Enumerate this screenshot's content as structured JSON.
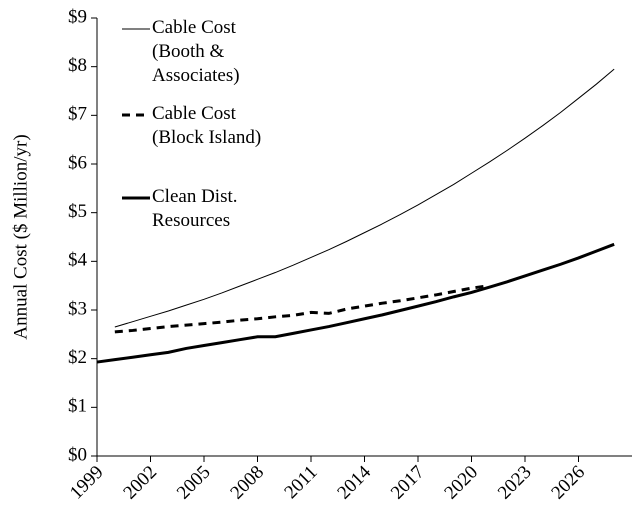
{
  "chart_data": {
    "type": "line",
    "ylabel": "Annual Cost ($ Million/yr)",
    "xlim": [
      1999,
      2029
    ],
    "xticks": [
      1999,
      2002,
      2005,
      2008,
      2011,
      2014,
      2017,
      2020,
      2023,
      2026
    ],
    "ylim": [
      0,
      9
    ],
    "yticks": [
      {
        "value": 0,
        "label": "$0"
      },
      {
        "value": 1,
        "label": "$1"
      },
      {
        "value": 2,
        "label": "$2"
      },
      {
        "value": 3,
        "label": "$3"
      },
      {
        "value": 4,
        "label": "$4"
      },
      {
        "value": 5,
        "label": "$5"
      },
      {
        "value": 6,
        "label": "$6"
      },
      {
        "value": 7,
        "label": "$7"
      },
      {
        "value": 8,
        "label": "$8"
      },
      {
        "value": 9,
        "label": "$9"
      }
    ],
    "series": [
      {
        "name": "Cable Cost\n(Booth &\nAssociates)",
        "color": "#000000",
        "style": "thin",
        "x": [
          2000,
          2001,
          2002,
          2003,
          2004,
          2005,
          2006,
          2007,
          2008,
          2009,
          2010,
          2011,
          2012,
          2013,
          2014,
          2015,
          2016,
          2017,
          2018,
          2019,
          2020,
          2021,
          2022,
          2023,
          2024,
          2025,
          2026,
          2027,
          2028
        ],
        "values": [
          2.65,
          2.76,
          2.87,
          2.98,
          3.1,
          3.22,
          3.35,
          3.49,
          3.63,
          3.77,
          3.92,
          4.08,
          4.24,
          4.41,
          4.59,
          4.77,
          4.96,
          5.16,
          5.37,
          5.58,
          5.81,
          6.04,
          6.28,
          6.53,
          6.79,
          7.06,
          7.35,
          7.64,
          7.95
        ]
      },
      {
        "name": "Cable Cost\n(Block  Island)",
        "color": "#000000",
        "style": "dashed",
        "x": [
          2000,
          2001,
          2002,
          2003,
          2004,
          2005,
          2006,
          2007,
          2008,
          2009,
          2010,
          2011,
          2012,
          2013,
          2014,
          2015,
          2016,
          2017,
          2018,
          2019,
          2020,
          2021
        ],
        "values": [
          2.55,
          2.58,
          2.62,
          2.66,
          2.69,
          2.72,
          2.75,
          2.79,
          2.82,
          2.86,
          2.89,
          2.95,
          2.93,
          3.02,
          3.08,
          3.14,
          3.19,
          3.25,
          3.31,
          3.38,
          3.45,
          3.5
        ]
      },
      {
        "name": "Clean Dist.\nResources",
        "color": "#000000",
        "style": "thick",
        "x": [
          1999,
          2000,
          2001,
          2002,
          2003,
          2004,
          2005,
          2006,
          2007,
          2008,
          2009,
          2010,
          2011,
          2012,
          2013,
          2014,
          2015,
          2016,
          2017,
          2018,
          2019,
          2020,
          2021,
          2022,
          2023,
          2024,
          2025,
          2026,
          2027,
          2028
        ],
        "values": [
          1.93,
          1.98,
          2.03,
          2.08,
          2.13,
          2.21,
          2.27,
          2.33,
          2.39,
          2.45,
          2.45,
          2.52,
          2.59,
          2.66,
          2.74,
          2.82,
          2.9,
          2.99,
          3.08,
          3.17,
          3.27,
          3.36,
          3.47,
          3.58,
          3.7,
          3.82,
          3.94,
          4.07,
          4.21,
          4.35
        ]
      }
    ]
  }
}
